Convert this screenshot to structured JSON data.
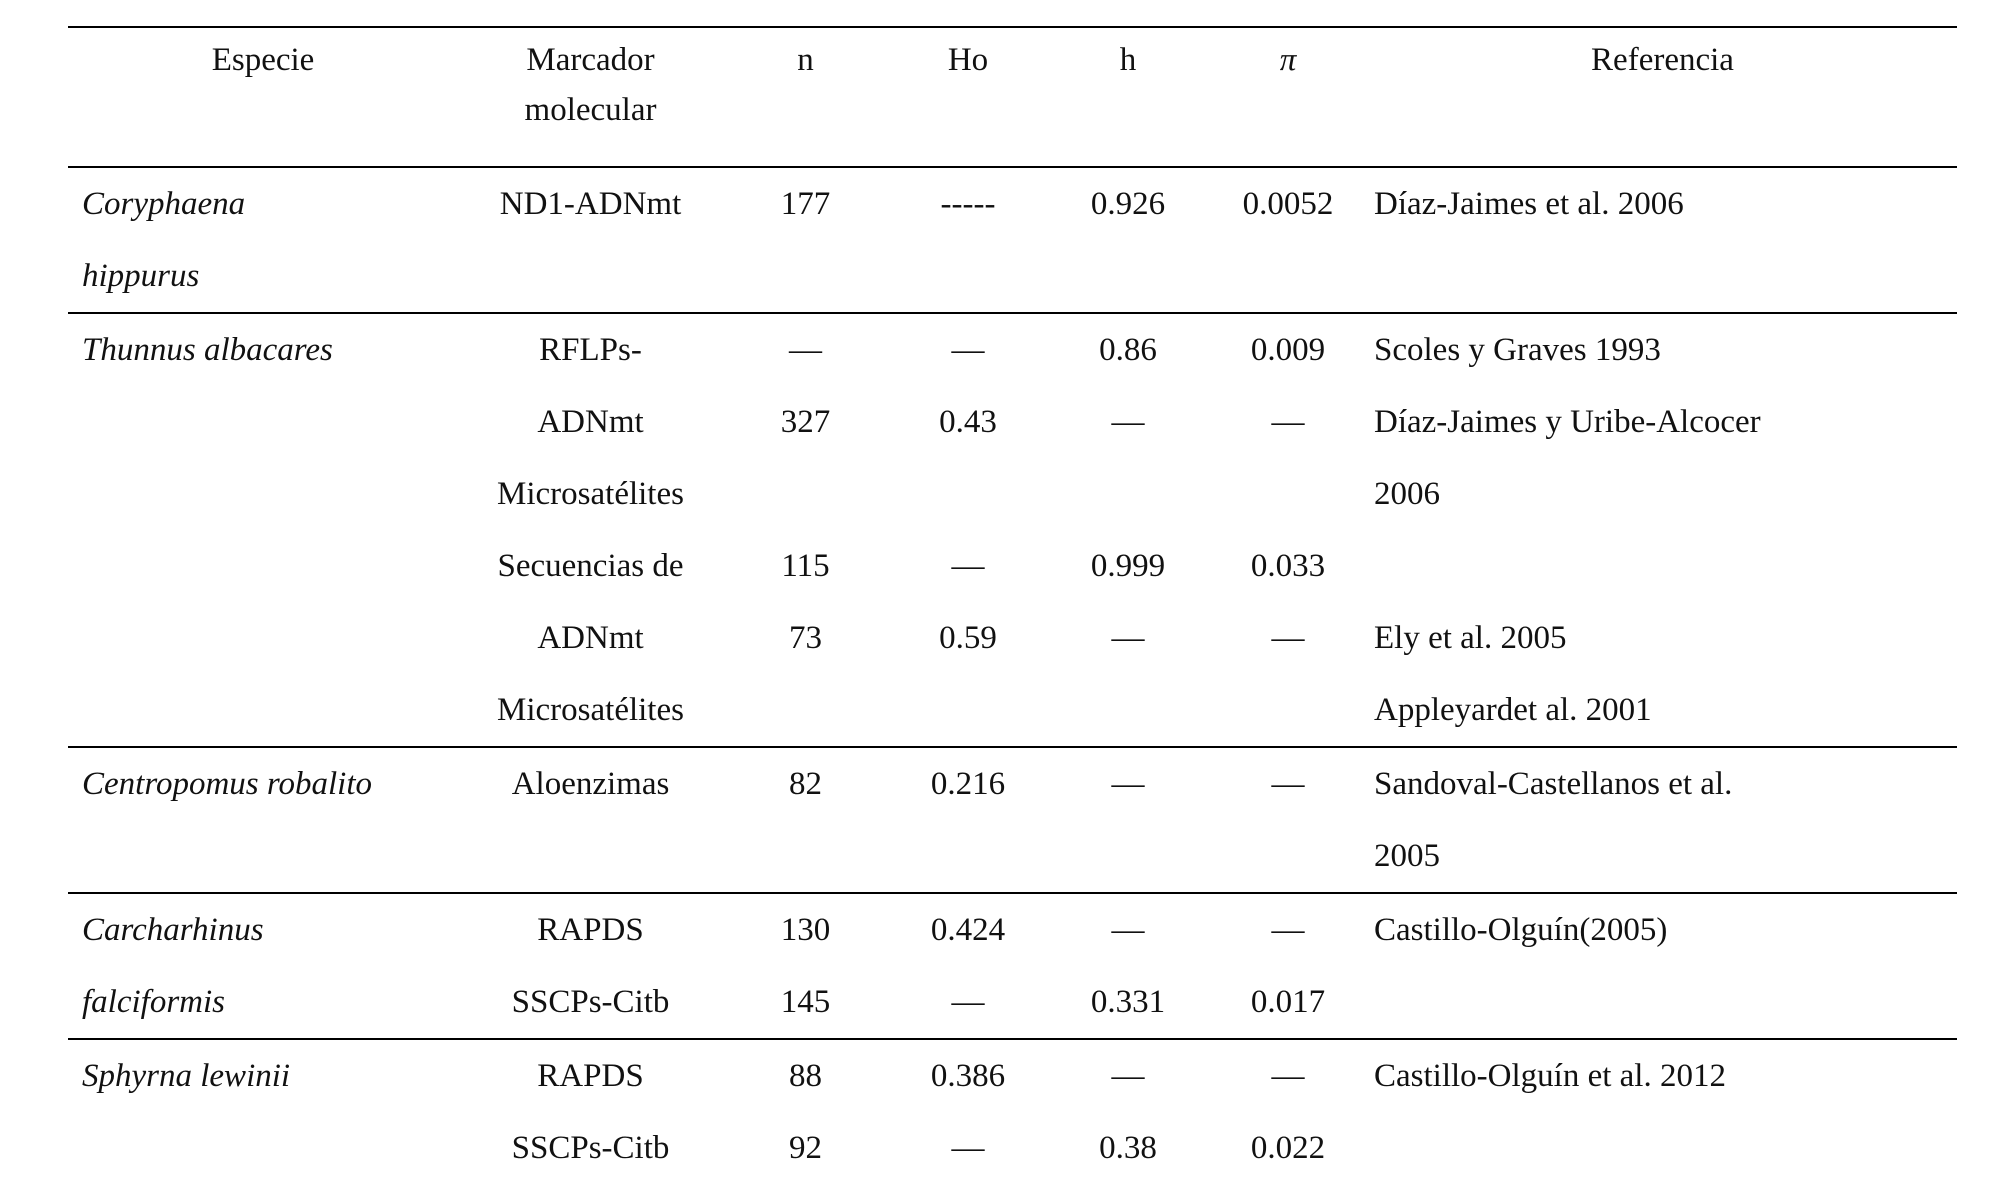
{
  "table": {
    "header": {
      "especie": "Especie",
      "marcador_line1": "Marcador",
      "marcador_line2": "molecular",
      "n": "n",
      "ho": "Ho",
      "h": "h",
      "pi": "π",
      "referencia": "Referencia"
    },
    "rows": [
      {
        "especie": "Coryphaena",
        "marcador": "ND1-ADNmt",
        "n": "177",
        "ho": "-----",
        "h": "0.926",
        "pi": "0.0052",
        "referencia": "Díaz-Jaimes et al. 2006"
      },
      {
        "especie": "hippurus",
        "marcador": "",
        "n": "",
        "ho": "",
        "h": "",
        "pi": "",
        "referencia": ""
      },
      {
        "especie": "Thunnus albacares",
        "marcador": "RFLPs-",
        "n": "—",
        "ho": "—",
        "h": "0.86",
        "pi": "0.009",
        "referencia": "Scoles y Graves 1993"
      },
      {
        "especie": "",
        "marcador": "ADNmt",
        "n": "327",
        "ho": "0.43",
        "h": "—",
        "pi": "—",
        "referencia": "Díaz-Jaimes y Uribe-Alcocer"
      },
      {
        "especie": "",
        "marcador": "Microsatélites",
        "n": "",
        "ho": "",
        "h": "",
        "pi": "",
        "referencia": "2006"
      },
      {
        "especie": "",
        "marcador": "Secuencias de",
        "n": "115",
        "ho": "—",
        "h": "0.999",
        "pi": "0.033",
        "referencia": ""
      },
      {
        "especie": "",
        "marcador": "ADNmt",
        "n": "73",
        "ho": "0.59",
        "h": "—",
        "pi": "—",
        "referencia": "Ely et al. 2005"
      },
      {
        "especie": "",
        "marcador": "Microsatélites",
        "n": "",
        "ho": "",
        "h": "",
        "pi": "",
        "referencia": "Appleyardet al. 2001"
      },
      {
        "especie": "Centropomus robalito",
        "marcador": "Aloenzimas",
        "n": "82",
        "ho": "0.216",
        "h": "—",
        "pi": "—",
        "referencia": "Sandoval-Castellanos et al."
      },
      {
        "especie": "",
        "marcador": "",
        "n": "",
        "ho": "",
        "h": "",
        "pi": "",
        "referencia": "2005"
      },
      {
        "especie": "Carcharhinus",
        "marcador": "RAPDS",
        "n": "130",
        "ho": "0.424",
        "h": "—",
        "pi": "—",
        "referencia": "Castillo-Olguín(2005)"
      },
      {
        "especie": "falciformis",
        "marcador": "SSCPs-Citb",
        "n": "145",
        "ho": "—",
        "h": "0.331",
        "pi": "0.017",
        "referencia": ""
      },
      {
        "especie": "Sphyrna lewinii",
        "marcador": "RAPDS",
        "n": "88",
        "ho": "0.386",
        "h": "—",
        "pi": "—",
        "referencia": "Castillo-Olguín et al. 2012"
      },
      {
        "especie": "",
        "marcador": "SSCPs-Citb",
        "n": "92",
        "ho": "—",
        "h": "0.38",
        "pi": "0.022",
        "referencia": ""
      }
    ]
  }
}
